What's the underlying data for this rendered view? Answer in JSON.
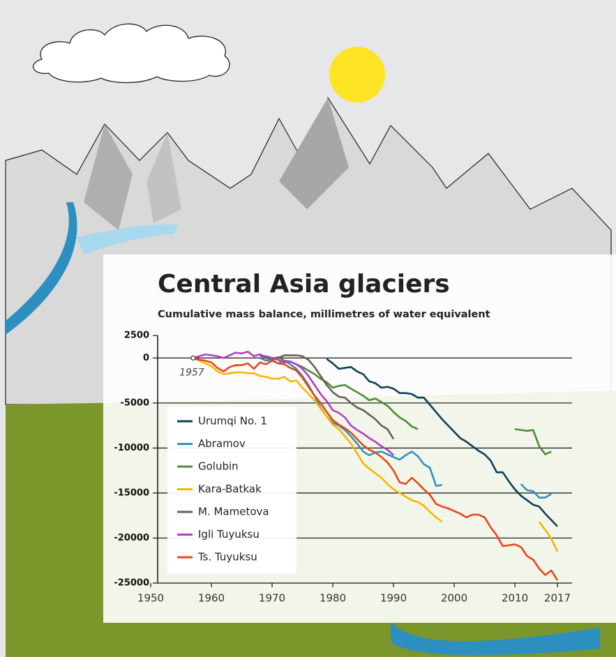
{
  "chart_data": {
    "type": "line",
    "title": "Central Asia glaciers",
    "subtitle": "Cumulative mass balance, millimetres of water equivalent",
    "annotation": "1957",
    "x": [
      1957,
      1958,
      1959,
      1960,
      1961,
      1962,
      1963,
      1964,
      1965,
      1966,
      1967,
      1968,
      1969,
      1970,
      1971,
      1972,
      1973,
      1974,
      1975,
      1976,
      1977,
      1978,
      1979,
      1980,
      1981,
      1982,
      1983,
      1984,
      1985,
      1986,
      1987,
      1988,
      1989,
      1990,
      1991,
      1992,
      1993,
      1994,
      1995,
      1996,
      1997,
      1998,
      1999,
      2000,
      2001,
      2002,
      2003,
      2004,
      2005,
      2006,
      2007,
      2008,
      2009,
      2010,
      2011,
      2012,
      2013,
      2014,
      2015,
      2016,
      2017
    ],
    "xlim": [
      1950,
      2017
    ],
    "xticks": [
      1950,
      1960,
      1970,
      1980,
      1990,
      2000,
      2010,
      2017
    ],
    "ylim": [
      -25000,
      2500
    ],
    "yticks": [
      2500,
      0,
      -5000,
      -10000,
      -15000,
      -20000,
      -25000
    ],
    "grid": true,
    "legend": "bottom-left",
    "series": [
      {
        "name": "Urumqi No. 1",
        "color": "#0e3f57",
        "values": [
          null,
          null,
          null,
          null,
          null,
          null,
          null,
          null,
          null,
          null,
          null,
          null,
          null,
          null,
          null,
          null,
          null,
          null,
          null,
          null,
          null,
          null,
          -100,
          -600,
          -1200,
          -1100,
          -1000,
          -1500,
          -1800,
          -2600,
          -2800,
          -3300,
          -3200,
          -3400,
          -3900,
          -3900,
          -4000,
          -4400,
          -4400,
          -5200,
          -6000,
          -6800,
          -7500,
          -8200,
          -8900,
          -9300,
          -9800,
          -10300,
          -10700,
          -11400,
          -12700,
          -12700,
          -13700,
          -14600,
          -15300,
          -15800,
          -16300,
          -16500,
          -17300,
          -18000,
          -18700
        ]
      },
      {
        "name": "Abramov",
        "color": "#2e91c0",
        "values": [
          null,
          null,
          null,
          null,
          null,
          null,
          null,
          null,
          null,
          null,
          null,
          0,
          -300,
          -200,
          -600,
          -300,
          -700,
          -1200,
          -2000,
          -3000,
          -4200,
          -5500,
          -6500,
          -7200,
          -7500,
          -8000,
          -8700,
          -9500,
          -10400,
          -10800,
          -10500,
          -10400,
          -10700,
          -11000,
          -11300,
          -10800,
          -10400,
          -10900,
          -11800,
          -12200,
          -14200,
          -14100,
          null,
          null,
          null,
          null,
          null,
          null,
          null,
          null,
          null,
          null,
          null,
          null,
          -14000,
          -14700,
          -14800,
          -15500,
          -15500,
          -15100,
          null
        ]
      },
      {
        "name": "Golubin",
        "color": "#4b8e34",
        "values": [
          null,
          null,
          null,
          null,
          null,
          null,
          null,
          null,
          null,
          null,
          null,
          null,
          0,
          -200,
          100,
          -300,
          -400,
          -700,
          -1000,
          -1400,
          -1800,
          -2300,
          -2700,
          -3300,
          -3100,
          -3000,
          -3400,
          -3800,
          -4200,
          -4700,
          -4500,
          -4900,
          -5300,
          -6000,
          -6600,
          -7000,
          -7600,
          -7900,
          null,
          null,
          null,
          null,
          null,
          null,
          null,
          null,
          null,
          null,
          null,
          null,
          null,
          null,
          null,
          -7900,
          -8000,
          -8100,
          -8000,
          -9800,
          -10700,
          -10400,
          null
        ]
      },
      {
        "name": "Kara-Batkak",
        "color": "#f8b600",
        "values": [
          0,
          -300,
          -600,
          -900,
          -1500,
          -1800,
          -1700,
          -1600,
          -1600,
          -1700,
          -1700,
          -2000,
          -2100,
          -2300,
          -2300,
          -2100,
          -2600,
          -2500,
          -3300,
          -4000,
          -4700,
          -5600,
          -6500,
          -7400,
          -7900,
          -8700,
          -9500,
          -10600,
          -11700,
          -12300,
          -12800,
          -13300,
          -14000,
          -14600,
          -15000,
          -15400,
          -15800,
          -16000,
          -16400,
          -17100,
          -17700,
          -18200,
          null,
          null,
          null,
          null,
          null,
          null,
          null,
          null,
          null,
          null,
          null,
          null,
          null,
          null,
          null,
          -18200,
          -19100,
          -20100,
          -21500
        ]
      },
      {
        "name": "M. Mametova",
        "color": "#6e5d52",
        "values": [
          null,
          null,
          null,
          null,
          null,
          null,
          null,
          null,
          null,
          null,
          null,
          200,
          200,
          0,
          0,
          300,
          300,
          300,
          200,
          -200,
          -1000,
          -2000,
          -3000,
          -3800,
          -4300,
          -4400,
          -5000,
          -5500,
          -5800,
          -6300,
          -6800,
          -7500,
          -7900,
          -9000,
          null,
          null,
          null,
          null,
          null,
          null,
          null,
          null,
          null,
          null,
          null,
          null,
          null,
          null,
          null,
          null,
          null,
          null,
          null,
          null,
          null,
          null,
          null,
          null,
          null,
          null,
          null
        ]
      },
      {
        "name": "Igli Tuyuksu",
        "color": "#b43fc0",
        "values": [
          0,
          200,
          400,
          300,
          200,
          0,
          300,
          600,
          500,
          700,
          200,
          400,
          100,
          0,
          -200,
          -500,
          -400,
          -700,
          -1200,
          -2000,
          -3000,
          -4000,
          -4800,
          -5800,
          -6100,
          -6600,
          -7500,
          -8000,
          -8400,
          -8900,
          -9300,
          -9800,
          -10200,
          -10800,
          null,
          null,
          null,
          null,
          null,
          null,
          null,
          null,
          null,
          null,
          null,
          null,
          null,
          null,
          null,
          null,
          null,
          null,
          null,
          null,
          null,
          null,
          null,
          null,
          null,
          null,
          null
        ]
      },
      {
        "name": "Ts. Tuyuksu",
        "color": "#e5481c",
        "values": [
          0,
          -200,
          -300,
          -500,
          -1100,
          -1500,
          -1000,
          -800,
          -800,
          -600,
          -1200,
          -500,
          -700,
          -300,
          -600,
          -700,
          -1100,
          -1400,
          -2200,
          -3200,
          -4200,
          -5000,
          -6000,
          -6900,
          -7400,
          -7800,
          -8300,
          -9000,
          -9700,
          -10200,
          -10500,
          -11000,
          -11600,
          -12500,
          -13800,
          -14000,
          -13300,
          -13900,
          -14600,
          -15200,
          -16200,
          -16500,
          -16700,
          -17000,
          -17300,
          -17700,
          -17400,
          -17400,
          -17700,
          -18800,
          -19700,
          -20900,
          -20800,
          -20700,
          -21000,
          -22000,
          -22400,
          -23400,
          -24100,
          -23600,
          -24700
        ]
      }
    ]
  }
}
